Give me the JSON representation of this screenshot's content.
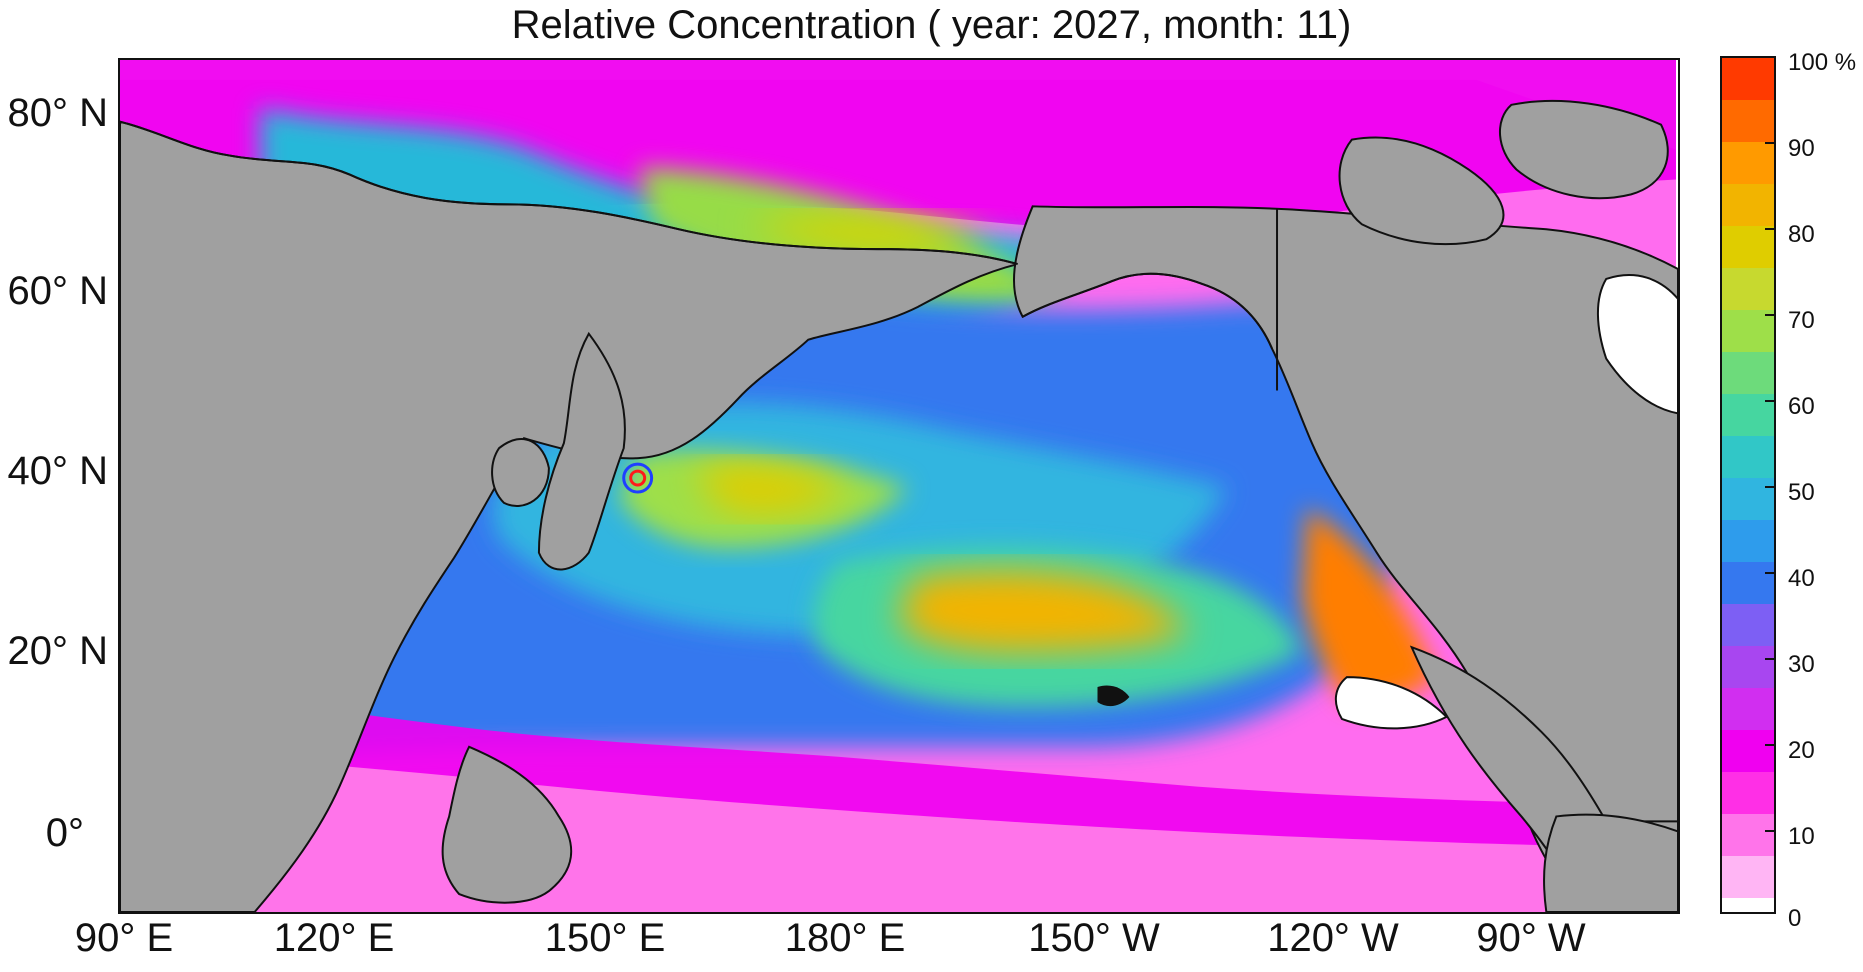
{
  "figure": {
    "title": "Relative Concentration ( year: 2027, month: 11)"
  },
  "map": {
    "latitude_labels": [
      "80° N",
      "60° N",
      "40° N",
      "20° N",
      "0°"
    ],
    "longitude_labels": [
      "90° E",
      "120° E",
      "150° E",
      "180° E",
      "150° W",
      "120° W",
      "90° W"
    ],
    "land_color": "#a0a0a0",
    "outline_color": "#111111",
    "source_marker": {
      "name": "Fukushima source marker",
      "outer_color": "#1f3fff",
      "inner_color": "#ff1a1a"
    }
  },
  "colorbar": {
    "unit": "%",
    "tick_labels": [
      "100 %",
      "90",
      "80",
      "70",
      "60",
      "50",
      "40",
      "30",
      "20",
      "10",
      "0"
    ],
    "levels": [
      {
        "label": "100",
        "color": "#ff3a00"
      },
      {
        "label": "95",
        "color": "#ff6a00"
      },
      {
        "label": "90",
        "color": "#ff9a00"
      },
      {
        "label": "85",
        "color": "#f2b400"
      },
      {
        "label": "80",
        "color": "#dfcd00"
      },
      {
        "label": "75",
        "color": "#c7d92f"
      },
      {
        "label": "70",
        "color": "#9edf49"
      },
      {
        "label": "65",
        "color": "#6ddb7b"
      },
      {
        "label": "60",
        "color": "#46d6a0"
      },
      {
        "label": "55",
        "color": "#31c7c7"
      },
      {
        "label": "50",
        "color": "#30b5e0"
      },
      {
        "label": "45",
        "color": "#2e9cec"
      },
      {
        "label": "40",
        "color": "#3578ef"
      },
      {
        "label": "35",
        "color": "#7d5ff4"
      },
      {
        "label": "30",
        "color": "#a846f0"
      },
      {
        "label": "25",
        "color": "#d12ef0"
      },
      {
        "label": "20",
        "color": "#f000f0"
      },
      {
        "label": "15",
        "color": "#ff2fe6"
      },
      {
        "label": "10",
        "color": "#ff74ea"
      },
      {
        "label": "5",
        "color": "#ffb5f4"
      },
      {
        "label": "0",
        "color": "#ffffff"
      }
    ]
  }
}
